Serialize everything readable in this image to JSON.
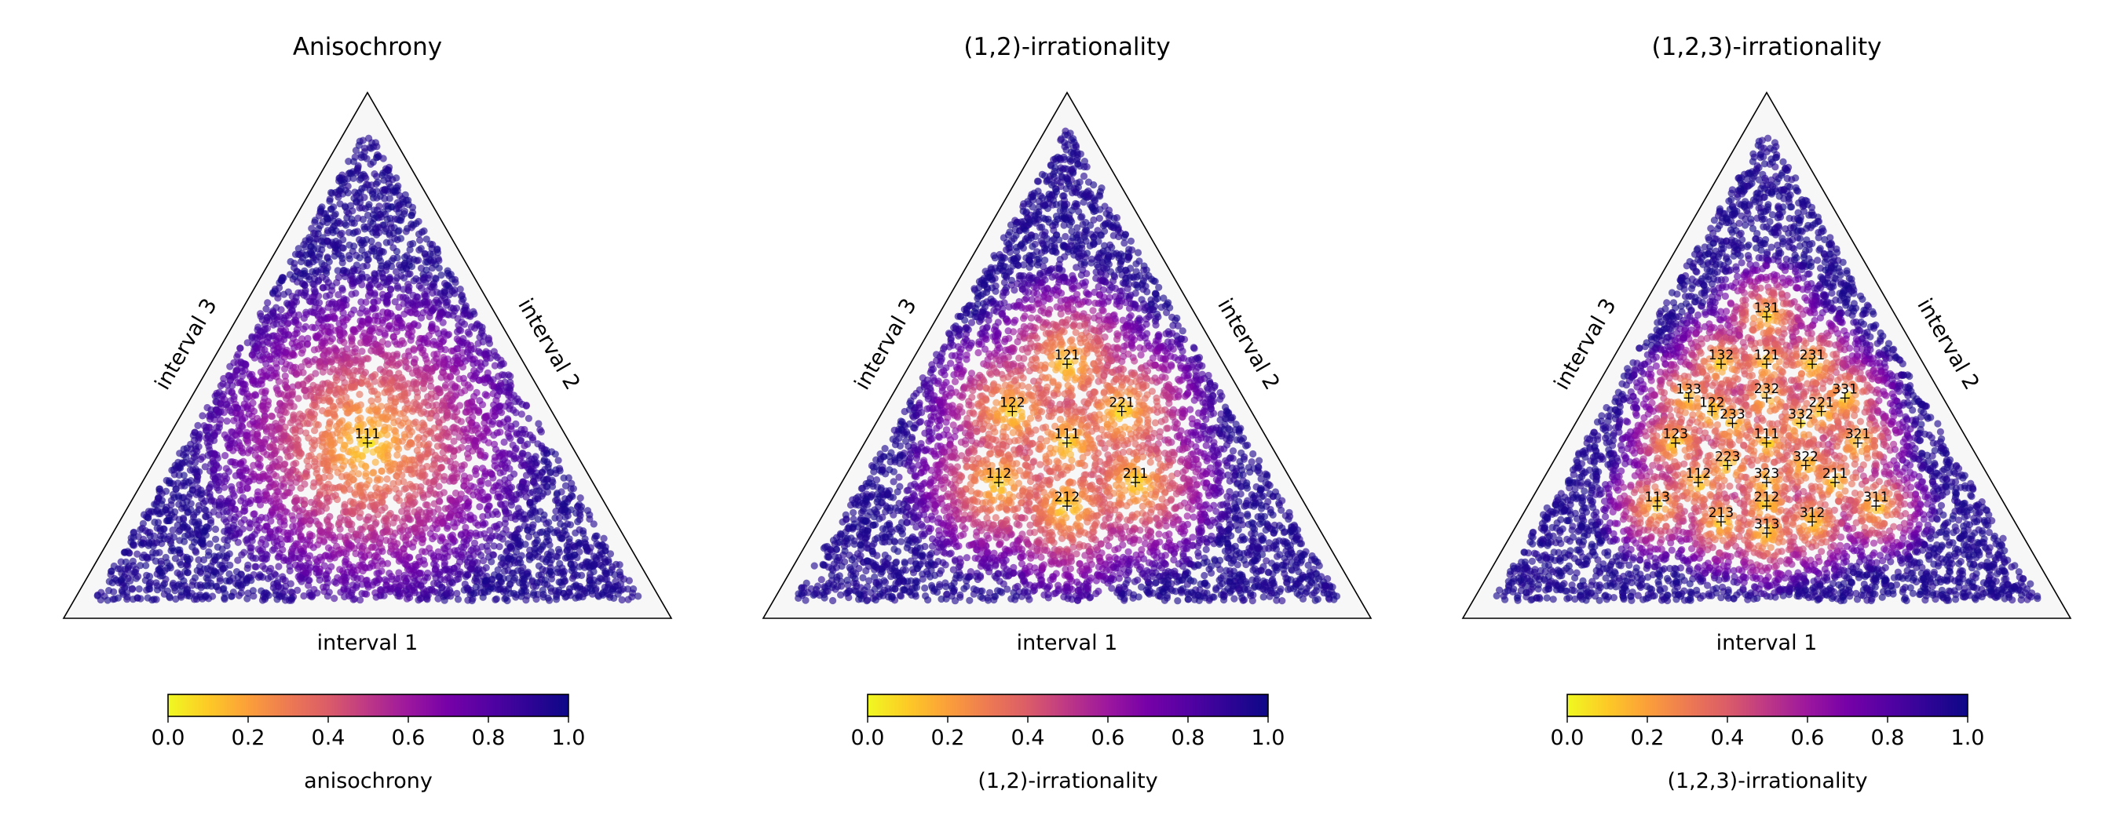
{
  "panels": [
    {
      "title": "Anisochrony",
      "axis_labels": {
        "bottom": "interval 1",
        "right": "interval 2",
        "left": "interval 3"
      },
      "colorbar": {
        "label": "anisochrony",
        "ticks": [
          "0.0",
          "0.2",
          "0.4",
          "0.6",
          "0.8",
          "1.0"
        ],
        "colormap": "plasma_r"
      },
      "rhythms": [
        "111"
      ]
    },
    {
      "title": "(1,2)-irrationality",
      "axis_labels": {
        "bottom": "interval 1",
        "right": "interval 2",
        "left": "interval 3"
      },
      "colorbar": {
        "label": "(1,2)-irrationality",
        "ticks": [
          "0.0",
          "0.2",
          "0.4",
          "0.6",
          "0.8",
          "1.0"
        ],
        "colormap": "plasma_r"
      },
      "rhythms": [
        "111",
        "121",
        "122",
        "221",
        "112",
        "211",
        "212"
      ]
    },
    {
      "title": "(1,2,3)-irrationality",
      "axis_labels": {
        "bottom": "interval 1",
        "right": "interval 2",
        "left": "interval 3"
      },
      "colorbar": {
        "label": "(1,2,3)-irrationality",
        "ticks": [
          "0.0",
          "0.2",
          "0.4",
          "0.6",
          "0.8",
          "1.0"
        ],
        "colormap": "plasma_r"
      },
      "rhythms": [
        "131",
        "132",
        "121",
        "231",
        "133",
        "232",
        "331",
        "122",
        "233",
        "221",
        "332",
        "123",
        "111",
        "321",
        "223",
        "322",
        "112",
        "323",
        "211",
        "113",
        "212",
        "311",
        "213",
        "312",
        "313"
      ]
    }
  ],
  "chart_data": [
    {
      "type": "scatter",
      "title": "Anisochrony",
      "coordinate_system": "ternary (interval 1, interval 2, interval 3 as fractions of cycle)",
      "color_metric": "anisochrony",
      "color_range": [
        0,
        1
      ],
      "colormap": "plasma_r",
      "annotated_points": [
        {
          "label": "111",
          "intervals": [
            0.3333,
            0.3333,
            0.3333
          ],
          "value": 0.0
        }
      ]
    },
    {
      "type": "scatter",
      "title": "(1,2)-irrationality",
      "coordinate_system": "ternary (interval 1, interval 2, interval 3 as fractions of cycle)",
      "color_metric": "(1,2)-irrationality",
      "color_range": [
        0,
        1
      ],
      "colormap": "plasma_r",
      "annotated_points": [
        {
          "label": "111",
          "intervals": [
            0.3333,
            0.3333,
            0.3333
          ],
          "value": 0.0
        },
        {
          "label": "121",
          "intervals": [
            0.25,
            0.5,
            0.25
          ],
          "value": 0.0
        },
        {
          "label": "122",
          "intervals": [
            0.2,
            0.4,
            0.4
          ],
          "value": 0.0
        },
        {
          "label": "221",
          "intervals": [
            0.4,
            0.4,
            0.2
          ],
          "value": 0.0
        },
        {
          "label": "112",
          "intervals": [
            0.25,
            0.25,
            0.5
          ],
          "value": 0.0
        },
        {
          "label": "211",
          "intervals": [
            0.5,
            0.25,
            0.25
          ],
          "value": 0.0
        },
        {
          "label": "212",
          "intervals": [
            0.4,
            0.2,
            0.4
          ],
          "value": 0.0
        }
      ]
    },
    {
      "type": "scatter",
      "title": "(1,2,3)-irrationality",
      "coordinate_system": "ternary (interval 1, interval 2, interval 3 as fractions of cycle)",
      "color_metric": "(1,2,3)-irrationality",
      "color_range": [
        0,
        1
      ],
      "colormap": "plasma_r",
      "annotated_points": [
        {
          "label": "131",
          "intervals": [
            0.2,
            0.6,
            0.2
          ],
          "value": 0.0
        },
        {
          "label": "132",
          "intervals": [
            0.1667,
            0.5,
            0.3333
          ],
          "value": 0.0
        },
        {
          "label": "121",
          "intervals": [
            0.25,
            0.5,
            0.25
          ],
          "value": 0.0
        },
        {
          "label": "231",
          "intervals": [
            0.3333,
            0.5,
            0.1667
          ],
          "value": 0.0
        },
        {
          "label": "133",
          "intervals": [
            0.1429,
            0.4286,
            0.4286
          ],
          "value": 0.0
        },
        {
          "label": "232",
          "intervals": [
            0.2857,
            0.4286,
            0.2857
          ],
          "value": 0.0
        },
        {
          "label": "331",
          "intervals": [
            0.4286,
            0.4286,
            0.1429
          ],
          "value": 0.0
        },
        {
          "label": "122",
          "intervals": [
            0.2,
            0.4,
            0.4
          ],
          "value": 0.0
        },
        {
          "label": "233",
          "intervals": [
            0.25,
            0.375,
            0.375
          ],
          "value": 0.0
        },
        {
          "label": "221",
          "intervals": [
            0.4,
            0.4,
            0.2
          ],
          "value": 0.0
        },
        {
          "label": "332",
          "intervals": [
            0.375,
            0.375,
            0.25
          ],
          "value": 0.0
        },
        {
          "label": "123",
          "intervals": [
            0.1667,
            0.3333,
            0.5
          ],
          "value": 0.0
        },
        {
          "label": "111",
          "intervals": [
            0.3333,
            0.3333,
            0.3333
          ],
          "value": 0.0
        },
        {
          "label": "321",
          "intervals": [
            0.5,
            0.3333,
            0.1667
          ],
          "value": 0.0
        },
        {
          "label": "223",
          "intervals": [
            0.2857,
            0.2857,
            0.4286
          ],
          "value": 0.0
        },
        {
          "label": "322",
          "intervals": [
            0.4286,
            0.2857,
            0.2857
          ],
          "value": 0.0
        },
        {
          "label": "112",
          "intervals": [
            0.25,
            0.25,
            0.5
          ],
          "value": 0.0
        },
        {
          "label": "323",
          "intervals": [
            0.375,
            0.25,
            0.375
          ],
          "value": 0.0
        },
        {
          "label": "211",
          "intervals": [
            0.5,
            0.25,
            0.25
          ],
          "value": 0.0
        },
        {
          "label": "113",
          "intervals": [
            0.2,
            0.2,
            0.6
          ],
          "value": 0.0
        },
        {
          "label": "212",
          "intervals": [
            0.4,
            0.2,
            0.4
          ],
          "value": 0.0
        },
        {
          "label": "311",
          "intervals": [
            0.6,
            0.2,
            0.2
          ],
          "value": 0.0
        },
        {
          "label": "213",
          "intervals": [
            0.3333,
            0.1667,
            0.5
          ],
          "value": 0.0
        },
        {
          "label": "312",
          "intervals": [
            0.5,
            0.1667,
            0.3333
          ],
          "value": 0.0
        },
        {
          "label": "313",
          "intervals": [
            0.4286,
            0.1429,
            0.4286
          ],
          "value": 0.0
        }
      ]
    }
  ]
}
